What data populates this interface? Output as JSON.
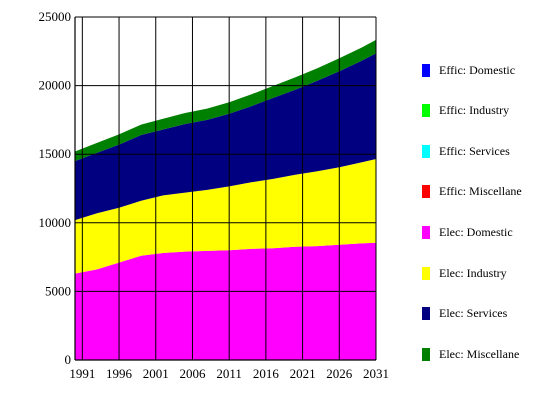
{
  "chart_data": {
    "type": "area",
    "stacked": true,
    "title": "",
    "xlabel": "",
    "ylabel": "",
    "x": [
      1990,
      1993,
      1996,
      1999,
      2002,
      2005,
      2008,
      2011,
      2014,
      2017,
      2020,
      2023,
      2026,
      2029,
      2031
    ],
    "xlim": [
      1990,
      2031
    ],
    "ylim": [
      0,
      25000
    ],
    "xticks": [
      "1991",
      "1996",
      "2001",
      "2006",
      "2011",
      "2016",
      "2021",
      "2026",
      "2031"
    ],
    "yticks": [
      "0",
      "5000",
      "10000",
      "15000",
      "20000",
      "25000"
    ],
    "grid": true,
    "legend_position": "right",
    "series": [
      {
        "name": "Effic: Domestic",
        "color": "#0000ff",
        "values": [
          0,
          0,
          0,
          0,
          0,
          0,
          0,
          0,
          0,
          0,
          0,
          0,
          0,
          0,
          0
        ]
      },
      {
        "name": "Effic: Industry",
        "color": "#00ff00",
        "values": [
          0,
          0,
          0,
          0,
          0,
          0,
          0,
          0,
          0,
          0,
          0,
          0,
          0,
          0,
          0
        ]
      },
      {
        "name": "Effic: Services",
        "color": "#00ffff",
        "values": [
          0,
          0,
          0,
          0,
          0,
          0,
          0,
          0,
          0,
          0,
          0,
          0,
          0,
          0,
          0
        ]
      },
      {
        "name": "Effic: Miscellane",
        "color": "#ff0000",
        "values": [
          0,
          0,
          0,
          0,
          0,
          0,
          0,
          0,
          0,
          0,
          0,
          0,
          0,
          0,
          0
        ]
      },
      {
        "name": "Elec: Domestic",
        "color": "#ff00ff",
        "values": [
          6300,
          6600,
          7100,
          7600,
          7800,
          7900,
          7950,
          8000,
          8100,
          8150,
          8250,
          8300,
          8400,
          8500,
          8550
        ]
      },
      {
        "name": "Elec: Industry",
        "color": "#ffff00",
        "values": [
          3900,
          4100,
          4000,
          4000,
          4200,
          4300,
          4450,
          4650,
          4850,
          5050,
          5250,
          5450,
          5650,
          5900,
          6100
        ]
      },
      {
        "name": "Elec: Services",
        "color": "#000080",
        "values": [
          4300,
          4400,
          4600,
          4800,
          4800,
          5000,
          5100,
          5300,
          5550,
          5900,
          6200,
          6600,
          7000,
          7400,
          7700
        ]
      },
      {
        "name": "Elec: Miscellane",
        "color": "#008000",
        "values": [
          700,
          720,
          740,
          760,
          780,
          800,
          820,
          840,
          860,
          880,
          900,
          920,
          940,
          960,
          980
        ]
      }
    ]
  }
}
